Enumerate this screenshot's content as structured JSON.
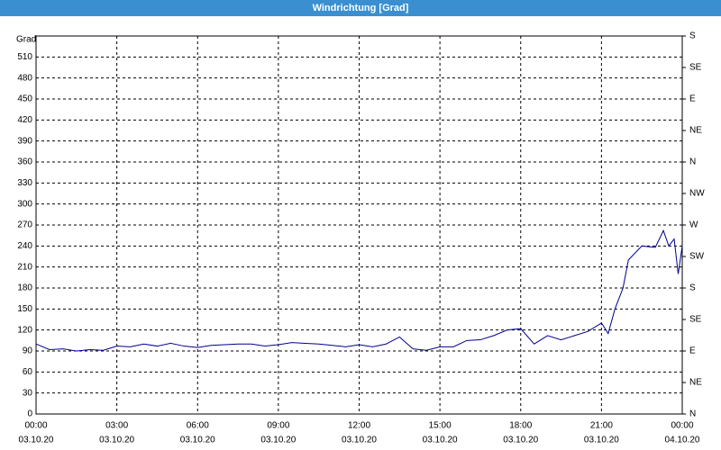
{
  "chart_data": {
    "type": "line",
    "title": "Windrichtung [Grad]",
    "y_label": "Grad",
    "x": [
      0,
      0.5,
      1,
      1.5,
      2,
      2.5,
      3,
      3.5,
      4,
      4.5,
      5,
      5.5,
      6,
      6.5,
      7,
      7.5,
      8,
      8.5,
      9,
      9.5,
      10,
      10.5,
      11,
      11.5,
      12,
      12.5,
      13,
      13.5,
      14,
      14.5,
      15,
      15.5,
      16,
      16.5,
      17,
      17.5,
      18,
      18.5,
      19,
      19.5,
      20,
      20.5,
      21,
      21.25,
      21.5,
      21.8,
      22,
      22.5,
      23,
      23.3,
      23.5,
      23.7,
      23.85,
      24
    ],
    "series": [
      {
        "name": "Windrichtung",
        "color": "#000090",
        "values": [
          100,
          92,
          93,
          90,
          92,
          91,
          97,
          96,
          100,
          97,
          101,
          97,
          95,
          98,
          99,
          100,
          100,
          97,
          99,
          102,
          101,
          100,
          98,
          96,
          99,
          96,
          100,
          110,
          93,
          91,
          96,
          96,
          105,
          106,
          112,
          120,
          122,
          100,
          112,
          106,
          112,
          118,
          130,
          115,
          150,
          180,
          220,
          240,
          238,
          262,
          240,
          250,
          200,
          240
        ]
      }
    ],
    "xlim": [
      0,
      24
    ],
    "xticks": [
      {
        "value": 0,
        "label": "00:00"
      },
      {
        "value": 3,
        "label": "03:00"
      },
      {
        "value": 6,
        "label": "06:00"
      },
      {
        "value": 9,
        "label": "09:00"
      },
      {
        "value": 12,
        "label": "12:00"
      },
      {
        "value": 15,
        "label": "15:00"
      },
      {
        "value": 18,
        "label": "18:00"
      },
      {
        "value": 21,
        "label": "21:00"
      },
      {
        "value": 24,
        "label": "00:00"
      }
    ],
    "xtick_dates": [
      "03.10.20",
      "03.10.20",
      "03.10.20",
      "03.10.20",
      "03.10.20",
      "03.10.20",
      "03.10.20",
      "03.10.20",
      "04.10.20"
    ],
    "ylim": [
      0,
      540
    ],
    "yticks": [
      0,
      30,
      60,
      90,
      120,
      150,
      180,
      210,
      240,
      270,
      300,
      330,
      360,
      390,
      420,
      450,
      480,
      510
    ],
    "y2lim": [
      0,
      540
    ],
    "y2ticks": [
      {
        "value": 0,
        "label": "N"
      },
      {
        "value": 45,
        "label": "NE"
      },
      {
        "value": 90,
        "label": "E"
      },
      {
        "value": 135,
        "label": "SE"
      },
      {
        "value": 180,
        "label": "S"
      },
      {
        "value": 225,
        "label": "SW"
      },
      {
        "value": 270,
        "label": "W"
      },
      {
        "value": 315,
        "label": "NW"
      },
      {
        "value": 360,
        "label": "N"
      },
      {
        "value": 405,
        "label": "NE"
      },
      {
        "value": 450,
        "label": "E"
      },
      {
        "value": 495,
        "label": "SE"
      },
      {
        "value": 540,
        "label": "S"
      }
    ],
    "grid": true
  }
}
